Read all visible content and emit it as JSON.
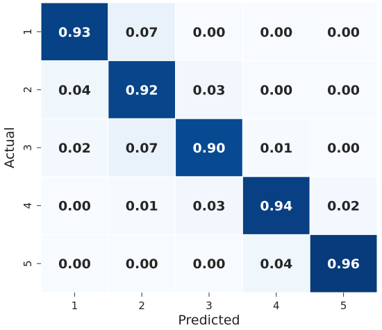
{
  "chart_data": {
    "type": "heatmap",
    "title": "",
    "xlabel": "Predicted",
    "ylabel": "Actual",
    "x_categories": [
      "1",
      "2",
      "3",
      "4",
      "5"
    ],
    "y_categories": [
      "1",
      "2",
      "3",
      "4",
      "5"
    ],
    "values": [
      [
        0.93,
        0.07,
        0.0,
        0.0,
        0.0
      ],
      [
        0.04,
        0.92,
        0.03,
        0.0,
        0.0
      ],
      [
        0.02,
        0.07,
        0.9,
        0.01,
        0.0
      ],
      [
        0.0,
        0.01,
        0.03,
        0.94,
        0.02
      ],
      [
        0.0,
        0.0,
        0.0,
        0.04,
        0.96
      ]
    ],
    "value_format": "0.00",
    "colormap": "Blues",
    "value_range": [
      0,
      1
    ],
    "colorbar": false
  }
}
